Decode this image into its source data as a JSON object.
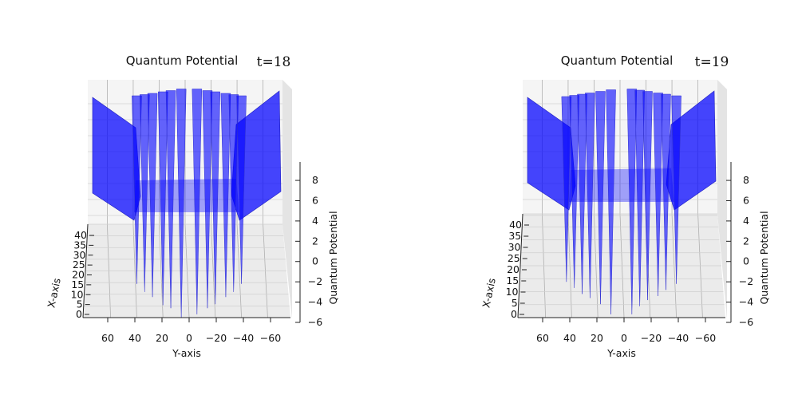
{
  "chart_data": [
    {
      "type": "surface3d",
      "title": "Quantum Potential",
      "annotation": "t=18",
      "xlabel": "Y-axis",
      "ylabel": "X-axis",
      "zlabel": "Quantum Potential",
      "y_ticks": [
        60,
        40,
        20,
        0,
        -20,
        -40,
        -60
      ],
      "x_ticks": [
        0,
        5,
        10,
        15,
        20,
        25,
        30,
        35,
        40
      ],
      "z_ticks": [
        -6,
        -4,
        -2,
        0,
        2,
        4,
        6,
        8
      ],
      "ylim": [
        75,
        -75
      ],
      "xlim": [
        0,
        45
      ],
      "zlim": [
        -6,
        9.5
      ],
      "color": "#0000ff",
      "peaks": [
        {
          "y": 40,
          "min": -2.2
        },
        {
          "y": 34,
          "min": -3.0
        },
        {
          "y": 28,
          "min": -3.5
        },
        {
          "y": 20,
          "min": -4.3
        },
        {
          "y": 14,
          "min": -4.6
        },
        {
          "y": 6,
          "min": -5.5
        },
        {
          "y": -6,
          "min": -5.2
        },
        {
          "y": -14,
          "min": -4.6
        },
        {
          "y": -20,
          "min": -4.2
        },
        {
          "y": -28,
          "min": -3.5
        },
        {
          "y": -34,
          "min": -3.0
        },
        {
          "y": -40,
          "min": -2.2
        }
      ]
    },
    {
      "type": "surface3d",
      "title": "Quantum Potential",
      "annotation": "t=19",
      "xlabel": "Y-axis",
      "ylabel": "X-axis",
      "zlabel": "Quantum Potential",
      "y_ticks": [
        60,
        40,
        20,
        0,
        -20,
        -40,
        -60
      ],
      "x_ticks": [
        0,
        5,
        10,
        15,
        20,
        25,
        30,
        35,
        40
      ],
      "z_ticks": [
        -6,
        -4,
        -2,
        0,
        2,
        4,
        6,
        8
      ],
      "ylim": [
        75,
        -75
      ],
      "xlim": [
        0,
        45
      ],
      "zlim": [
        -6,
        9.5
      ],
      "color": "#0000ff",
      "peaks": [
        {
          "y": 44,
          "min": -2.0
        },
        {
          "y": 38,
          "min": -2.6
        },
        {
          "y": 32,
          "min": -3.2
        },
        {
          "y": 26,
          "min": -3.6
        },
        {
          "y": 18,
          "min": -4.2
        },
        {
          "y": 10,
          "min": -5.2
        },
        {
          "y": -6,
          "min": -5.2
        },
        {
          "y": -12,
          "min": -4.4
        },
        {
          "y": -18,
          "min": -3.8
        },
        {
          "y": -26,
          "min": -3.4
        },
        {
          "y": -32,
          "min": -2.8
        },
        {
          "y": -40,
          "min": -2.2
        }
      ]
    }
  ]
}
